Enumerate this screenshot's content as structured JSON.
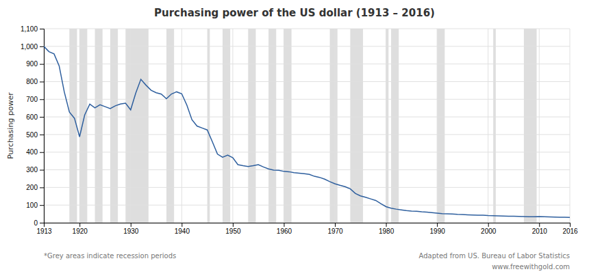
{
  "chart_data": {
    "type": "line",
    "title": "Purchasing power of the US dollar (1913 – 2016)",
    "ylabel": "Purchasing power",
    "color": "#2e5f9e",
    "grid": true,
    "xlim": [
      1913,
      2016
    ],
    "ylim": [
      0,
      1100
    ],
    "xticks": [
      1913,
      1920,
      1930,
      1940,
      1950,
      1960,
      1970,
      1980,
      1990,
      2000,
      2010,
      2016
    ],
    "yticks": [
      0,
      100,
      200,
      300,
      400,
      500,
      600,
      700,
      800,
      900,
      {
        "value": 1000,
        "label": "1,000"
      },
      {
        "value": 1100,
        "label": "1,100"
      }
    ],
    "recession_periods": [
      [
        1918,
        1919.5
      ],
      [
        1920,
        1921.5
      ],
      [
        1923,
        1924.5
      ],
      [
        1926,
        1927.5
      ],
      [
        1929,
        1933.5
      ],
      [
        1937,
        1938.5
      ],
      [
        1945,
        1945.5
      ],
      [
        1948,
        1949.5
      ],
      [
        1953,
        1954.5
      ],
      [
        1957,
        1958.5
      ],
      [
        1960,
        1961.5
      ],
      [
        1969,
        1970.5
      ],
      [
        1973,
        1975.5
      ],
      [
        1980,
        1980.5
      ],
      [
        1981,
        1982.5
      ],
      [
        1990,
        1991.5
      ],
      [
        2001,
        2001.5
      ],
      [
        2007,
        2009.5
      ]
    ],
    "recession_color": "#c8c8c8",
    "annotations": [
      "*Grey areas indicate recession periods",
      "Adapted from US. Bureau of Labor Statistics",
      "www.freewithgold.com"
    ],
    "x": [
      1913,
      1914,
      1915,
      1916,
      1917,
      1918,
      1919,
      1920,
      1921,
      1922,
      1923,
      1924,
      1925,
      1926,
      1927,
      1928,
      1929,
      1930,
      1931,
      1932,
      1933,
      1934,
      1935,
      1936,
      1937,
      1938,
      1939,
      1940,
      1941,
      1942,
      1943,
      1944,
      1945,
      1946,
      1947,
      1948,
      1949,
      1950,
      1951,
      1952,
      1953,
      1954,
      1955,
      1956,
      1957,
      1958,
      1959,
      1960,
      1961,
      1962,
      1963,
      1964,
      1965,
      1966,
      1967,
      1968,
      1969,
      1970,
      1971,
      1972,
      1973,
      1974,
      1975,
      1976,
      1977,
      1978,
      1979,
      1980,
      1981,
      1982,
      1983,
      1984,
      1985,
      1986,
      1987,
      1988,
      1989,
      1990,
      1991,
      1992,
      1993,
      1994,
      1995,
      1996,
      1997,
      1998,
      1999,
      2000,
      2001,
      2002,
      2003,
      2004,
      2005,
      2006,
      2007,
      2008,
      2009,
      2010,
      2011,
      2012,
      2013,
      2014,
      2015,
      2016
    ],
    "values": [
      1000,
      970,
      957,
      889,
      742,
      628,
      592,
      487,
      611,
      672,
      651,
      669,
      658,
      647,
      663,
      673,
      678,
      640,
      735,
      813,
      780,
      751,
      737,
      729,
      703,
      730,
      742,
      731,
      667,
      584,
      548,
      537,
      526,
      459,
      389,
      371,
      383,
      369,
      329,
      323,
      319,
      323,
      329,
      316,
      305,
      298,
      297,
      291,
      289,
      284,
      281,
      278,
      274,
      263,
      257,
      247,
      233,
      221,
      212,
      204,
      192,
      166,
      152,
      144,
      135,
      126,
      108,
      91,
      82,
      77,
      73,
      69,
      66,
      65,
      62,
      60,
      57,
      54,
      51,
      50,
      49,
      47,
      46,
      45,
      44,
      43,
      43,
      41,
      40,
      39,
      38,
      37,
      37,
      36,
      35,
      34,
      34,
      35,
      34,
      33,
      32,
      31,
      31,
      30
    ]
  }
}
